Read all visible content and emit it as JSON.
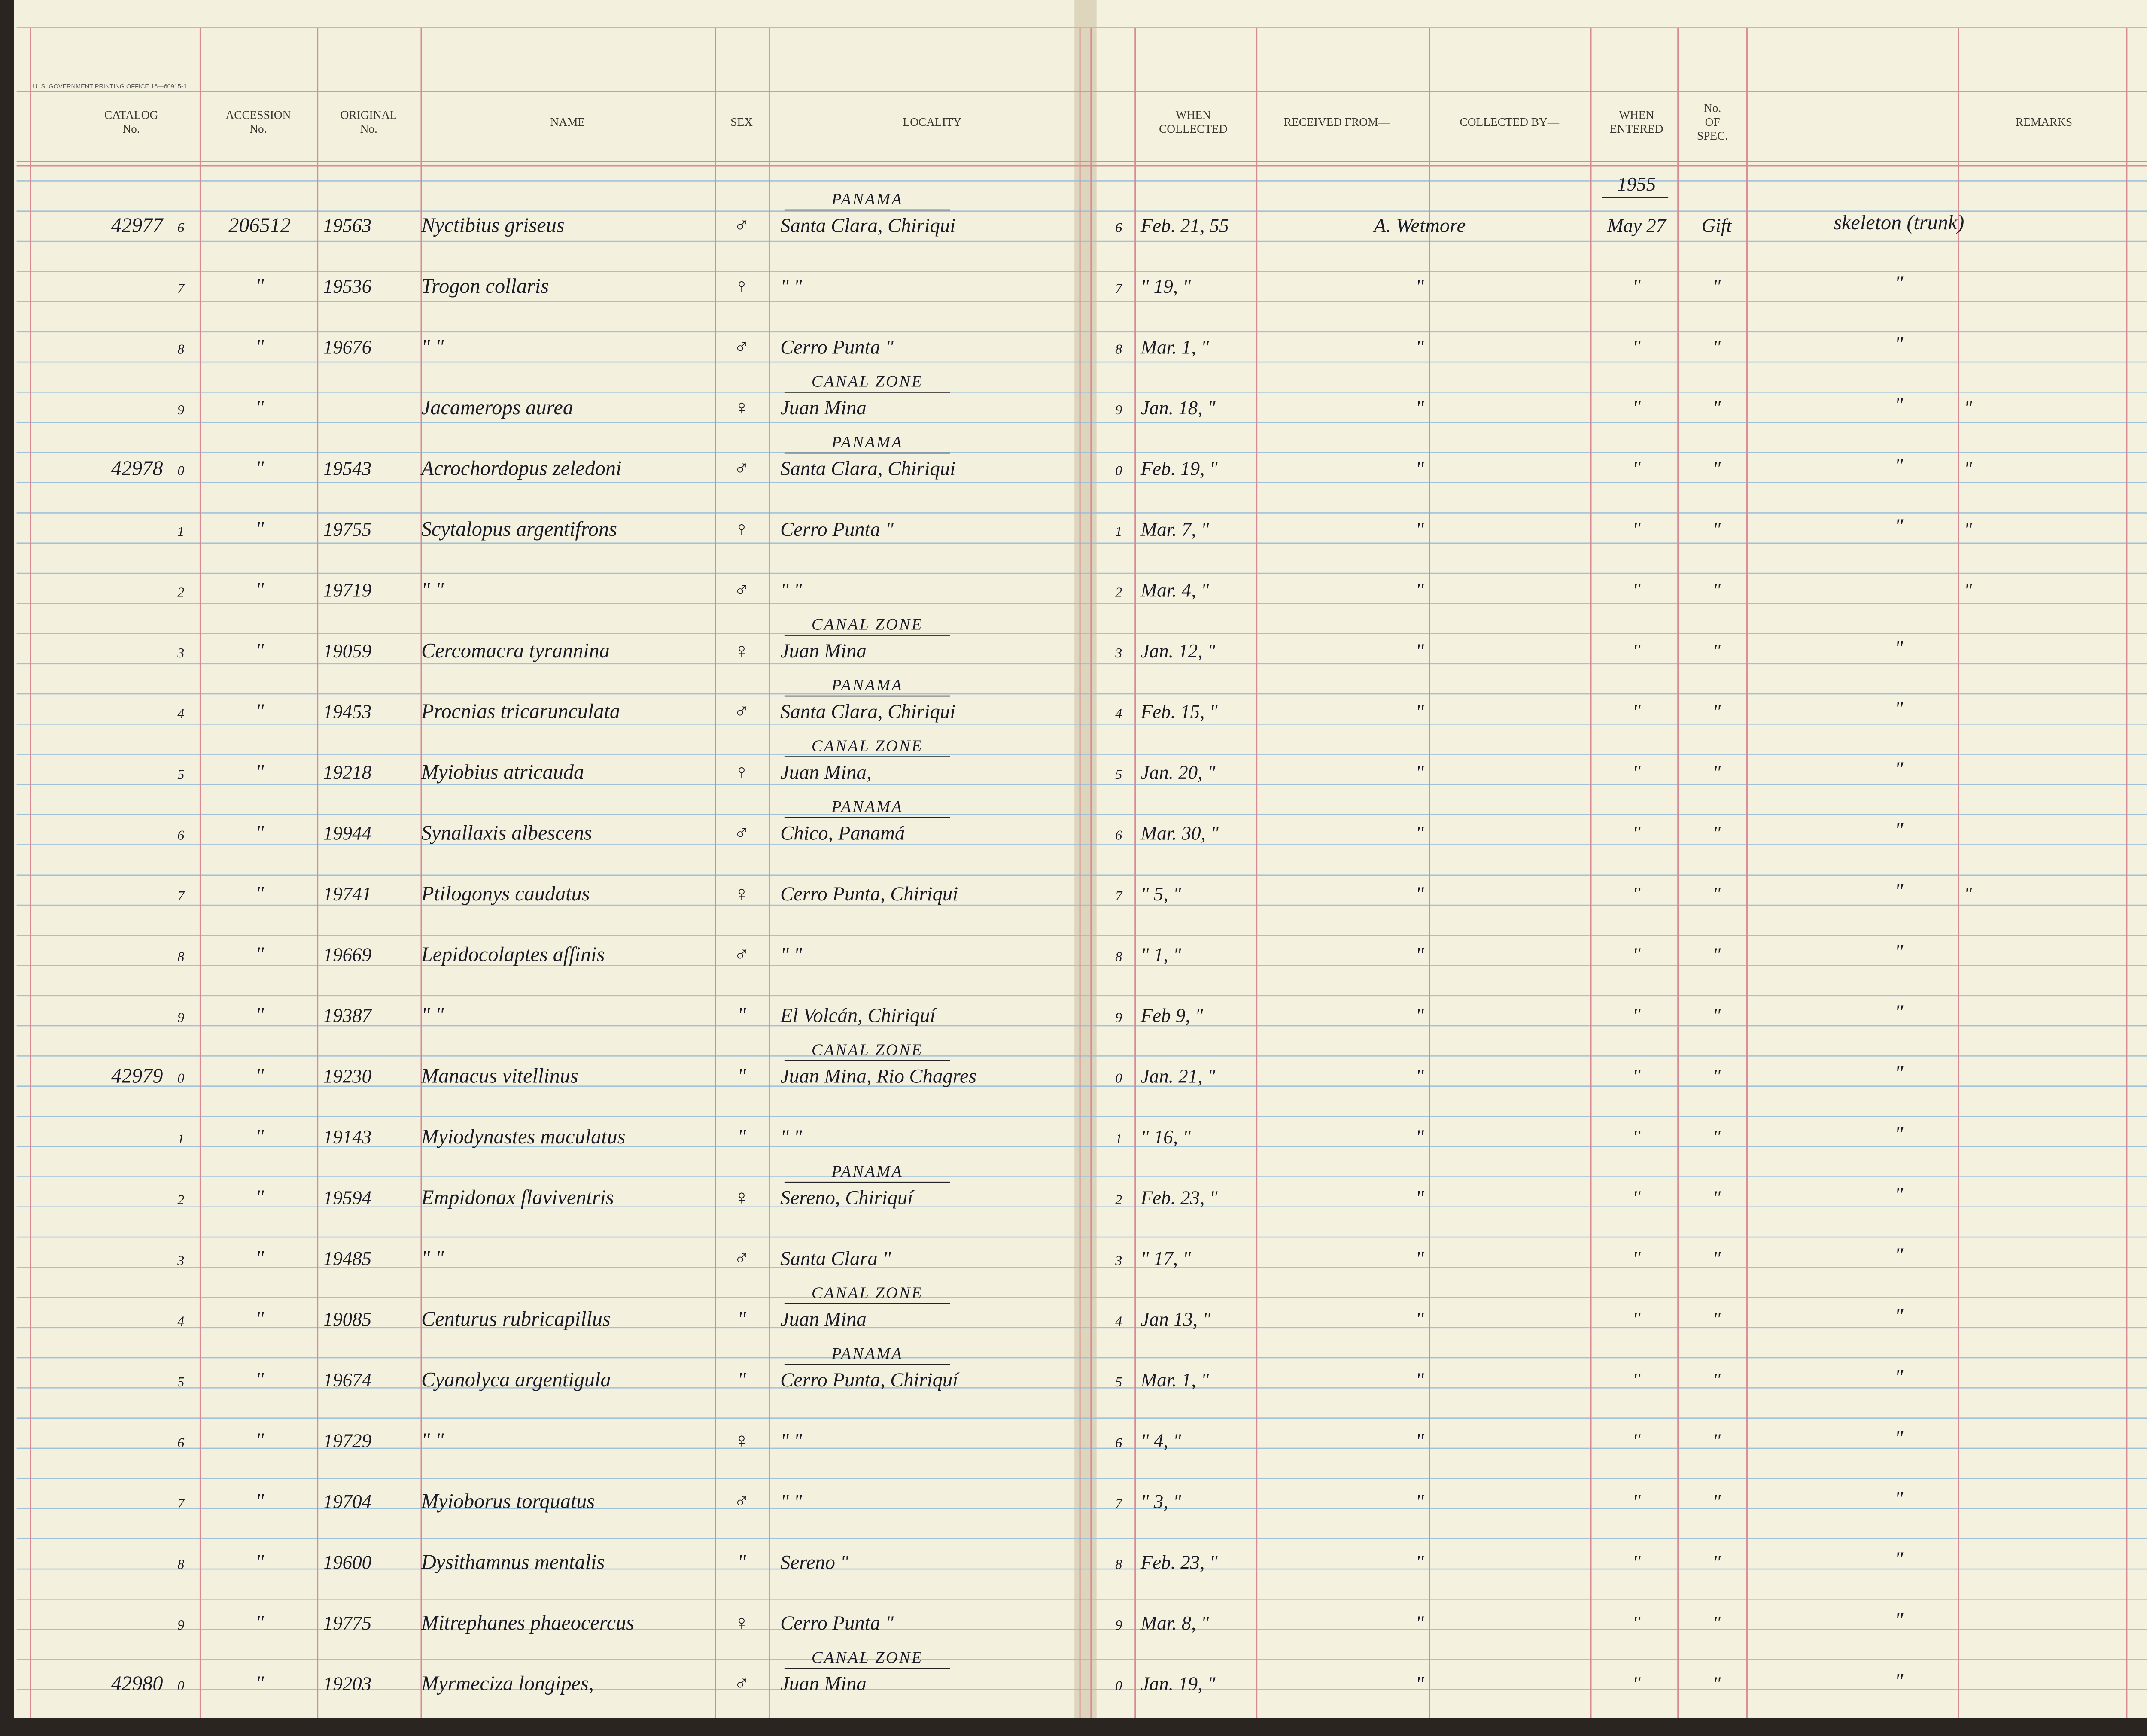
{
  "printer": "U. S. GOVERNMENT PRINTING OFFICE 16—60915-1",
  "header": {
    "left": [
      [
        "CATALOG",
        "No."
      ],
      [
        "ACCESSION",
        "No."
      ],
      [
        "ORIGINAL",
        "No."
      ],
      [
        "NAME"
      ],
      [
        "SEX"
      ],
      [
        "LOCALITY"
      ]
    ],
    "right": [
      [
        "WHEN",
        "COLLECTED"
      ],
      [
        "RECEIVED FROM—"
      ],
      [
        "COLLECTED BY—"
      ],
      [
        "WHEN",
        "ENTERED"
      ],
      [
        "No.",
        "OF",
        "SPEC."
      ],
      [
        "REMARKS"
      ]
    ]
  },
  "year": "1955",
  "rows": [
    {
      "catalog": "42977",
      "digit": "6",
      "accession": "206512",
      "original": "19563",
      "name": "Nyctibius griseus",
      "sex": "♂",
      "region": "PANAMA",
      "locality": "Santa Clara, Chiriqui",
      "digit2": "6",
      "collected": "Feb. 21, 55",
      "received": "A. Wetmore",
      "entered": "May 27",
      "spec": "Gift",
      "prep": "skeleton (trunk)"
    },
    {
      "digit": "7",
      "accession": "\"",
      "original": "19536",
      "name": "Trogon collaris",
      "sex": "♀",
      "locality": "\"        \"",
      "digit2": "7",
      "collected": "\" 19, \"",
      "received": "\"",
      "entered": "\"",
      "spec": "\"",
      "prep": "\""
    },
    {
      "digit": "8",
      "accession": "\"",
      "original": "19676",
      "name": "\"      \"",
      "sex": "♂",
      "locality": "Cerro Punta  \"",
      "digit2": "8",
      "collected": "Mar. 1, \"",
      "received": "\"",
      "entered": "\"",
      "spec": "\"",
      "prep": "\""
    },
    {
      "digit": "9",
      "accession": "\"",
      "name": "Jacamerops aurea",
      "sex": "♀",
      "region": "CANAL ZONE",
      "locality": "Juan Mina",
      "digit2": "9",
      "collected": "Jan. 18, \"",
      "received": "\"",
      "entered": "\"",
      "spec": "\"",
      "prep": "\"",
      "remarks": "\""
    },
    {
      "catalog": "42978",
      "digit": "0",
      "accession": "\"",
      "original": "19543",
      "name": "Acrochordopus zeledoni",
      "sex": "♂",
      "region": "PANAMA",
      "locality": "Santa Clara, Chiriqui",
      "digit2": "0",
      "collected": "Feb. 19, \"",
      "received": "\"",
      "entered": "\"",
      "spec": "\"",
      "prep": "\"",
      "remarks": "\""
    },
    {
      "digit": "1",
      "accession": "\"",
      "original": "19755",
      "name": "Scytalopus argentifrons",
      "sex": "♀",
      "locality": "Cerro Punta  \"",
      "digit2": "1",
      "collected": "Mar. 7, \"",
      "received": "\"",
      "entered": "\"",
      "spec": "\"",
      "prep": "\"",
      "remarks": "\""
    },
    {
      "digit": "2",
      "accession": "\"",
      "original": "19719",
      "name": "\"      \"",
      "sex": "♂",
      "locality": "\"        \"",
      "digit2": "2",
      "collected": "Mar. 4, \"",
      "received": "\"",
      "entered": "\"",
      "spec": "\"",
      "remarks": "\""
    },
    {
      "digit": "3",
      "accession": "\"",
      "original": "19059",
      "name": "Cercomacra tyrannina",
      "sex": "♀",
      "region": "CANAL ZONE",
      "locality": "Juan Mina",
      "digit2": "3",
      "collected": "Jan. 12, \"",
      "received": "\"",
      "entered": "\"",
      "spec": "\"",
      "prep": "\""
    },
    {
      "digit": "4",
      "accession": "\"",
      "original": "19453",
      "name": "Procnias tricarunculata",
      "sex": "♂",
      "region": "PANAMA",
      "locality": "Santa Clara, Chiriqui",
      "digit2": "4",
      "collected": "Feb. 15, \"",
      "received": "\"",
      "entered": "\"",
      "spec": "\"",
      "prep": "\""
    },
    {
      "digit": "5",
      "accession": "\"",
      "original": "19218",
      "name": "Myiobius atricauda",
      "sex": "♀",
      "region": "CANAL ZONE",
      "locality": "Juan Mina,",
      "digit2": "5",
      "collected": "Jan. 20, \"",
      "received": "\"",
      "entered": "\"",
      "spec": "\"",
      "prep": "\""
    },
    {
      "digit": "6",
      "accession": "\"",
      "original": "19944",
      "name": "Synallaxis albescens",
      "sex": "♂",
      "region": "PANAMA",
      "locality": "Chico, Panamá",
      "digit2": "6",
      "collected": "Mar. 30, \"",
      "received": "\"",
      "entered": "\"",
      "spec": "\"",
      "prep": "\""
    },
    {
      "digit": "7",
      "accession": "\"",
      "original": "19741",
      "name": "Ptilogonys caudatus",
      "sex": "♀",
      "locality": "Cerro Punta, Chiriqui",
      "digit2": "7",
      "collected": "\" 5, \"",
      "received": "\"",
      "entered": "\"",
      "spec": "\"",
      "prep": "\"",
      "remarks": "\""
    },
    {
      "digit": "8",
      "accession": "\"",
      "original": "19669",
      "name": "Lepidocolaptes affinis",
      "sex": "♂",
      "locality": "\"        \"",
      "digit2": "8",
      "collected": "\" 1, \"",
      "received": "\"",
      "entered": "\"",
      "spec": "\"",
      "prep": "\""
    },
    {
      "digit": "9",
      "accession": "\"",
      "original": "19387",
      "name": "\"      \"",
      "sex": "\"",
      "locality": "El Volcán, Chiriquí",
      "digit2": "9",
      "collected": "Feb 9, \"",
      "received": "\"",
      "entered": "\"",
      "spec": "\"",
      "prep": "\""
    },
    {
      "catalog": "42979",
      "digit": "0",
      "accession": "\"",
      "original": "19230",
      "name": "Manacus vitellinus",
      "sex": "\"",
      "region": "CANAL ZONE",
      "locality": "Juan Mina, Rio Chagres",
      "digit2": "0",
      "collected": "Jan. 21, \"",
      "received": "\"",
      "entered": "\"",
      "spec": "\"",
      "prep": "\""
    },
    {
      "digit": "1",
      "accession": "\"",
      "original": "19143",
      "name": "Myiodynastes maculatus",
      "sex": "\"",
      "locality": "\"        \"",
      "digit2": "1",
      "collected": "\" 16, \"",
      "received": "\"",
      "entered": "\"",
      "spec": "\"",
      "prep": "\""
    },
    {
      "digit": "2",
      "accession": "\"",
      "original": "19594",
      "name": "Empidonax flaviventris",
      "sex": "♀",
      "region": "PANAMA",
      "locality": "Sereno, Chiriquí",
      "digit2": "2",
      "collected": "Feb. 23, \"",
      "received": "\"",
      "entered": "\"",
      "spec": "\"",
      "prep": "\""
    },
    {
      "digit": "3",
      "accession": "\"",
      "original": "19485",
      "name": "\"      \"",
      "sex": "♂",
      "locality": "Santa Clara  \"",
      "digit2": "3",
      "collected": "\" 17, \"",
      "received": "\"",
      "entered": "\"",
      "spec": "\"",
      "prep": "\""
    },
    {
      "digit": "4",
      "accession": "\"",
      "original": "19085",
      "name": "Centurus rubricapillus",
      "sex": "\"",
      "region": "CANAL ZONE",
      "locality": "Juan Mina",
      "digit2": "4",
      "collected": "Jan 13, \"",
      "received": "\"",
      "entered": "\"",
      "spec": "\"",
      "prep": "\""
    },
    {
      "digit": "5",
      "accession": "\"",
      "original": "19674",
      "name": "Cyanolyca argentigula",
      "sex": "\"",
      "region": "PANAMA",
      "locality": "Cerro Punta, Chiriquí",
      "digit2": "5",
      "collected": "Mar. 1, \"",
      "received": "\"",
      "entered": "\"",
      "spec": "\"",
      "prep": "\""
    },
    {
      "digit": "6",
      "accession": "\"",
      "original": "19729",
      "name": "\"      \"",
      "sex": "♀",
      "locality": "\"        \"",
      "digit2": "6",
      "collected": "\" 4, \"",
      "received": "\"",
      "entered": "\"",
      "spec": "\"",
      "prep": "\""
    },
    {
      "digit": "7",
      "accession": "\"",
      "original": "19704",
      "name": "Myioborus torquatus",
      "sex": "♂",
      "locality": "\"        \"",
      "digit2": "7",
      "collected": "\" 3, \"",
      "received": "\"",
      "entered": "\"",
      "spec": "\"",
      "prep": "\""
    },
    {
      "digit": "8",
      "accession": "\"",
      "original": "19600",
      "name": "Dysithamnus mentalis",
      "sex": "\"",
      "locality": "Sereno  \"",
      "digit2": "8",
      "collected": "Feb. 23, \"",
      "received": "\"",
      "entered": "\"",
      "spec": "\"",
      "prep": "\""
    },
    {
      "digit": "9",
      "accession": "\"",
      "original": "19775",
      "name": "Mitrephanes phaeocercus",
      "sex": "♀",
      "locality": "Cerro Punta  \"",
      "digit2": "9",
      "collected": "Mar. 8, \"",
      "received": "\"",
      "entered": "\"",
      "spec": "\"",
      "prep": "\""
    },
    {
      "catalog": "42980",
      "digit": "0",
      "accession": "\"",
      "original": "19203",
      "name": "Myrmeciza longipes,",
      "sex": "♂",
      "region": "CANAL ZONE",
      "locality": "Juan Mina",
      "digit2": "0",
      "collected": "Jan. 19, \"",
      "received": "\"",
      "entered": "\"",
      "spec": "\"",
      "prep": "\""
    }
  ]
}
